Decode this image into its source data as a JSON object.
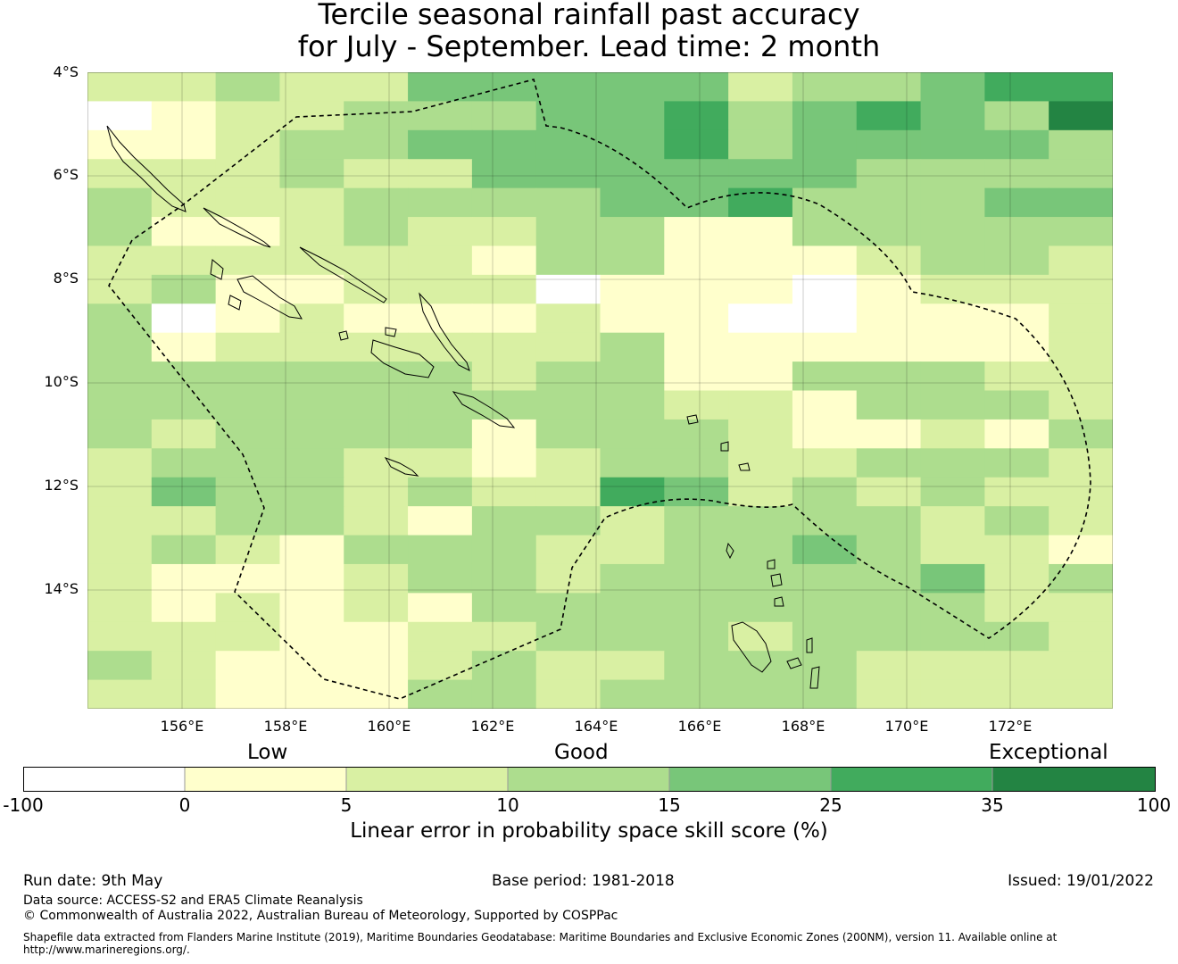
{
  "title": {
    "line1": "Tercile seasonal rainfall past accuracy",
    "line2": "for July - September. Lead time: 2 month"
  },
  "map": {
    "lat_labels": [
      "4°S",
      "6°S",
      "8°S",
      "10°S",
      "12°S",
      "14°S"
    ],
    "lon_labels": [
      "156°E",
      "158°E",
      "160°E",
      "162°E",
      "164°E",
      "166°E",
      "168°E",
      "170°E",
      "172°E"
    ],
    "skill_grid": [
      "2232244444233455",
      "0122333445345436",
      "1123344445344443",
      "2223224444443333",
      "3222333344533344",
      "3112322331133333",
      "2222221331112332",
      "2311222011101222",
      "3012111211001112",
      "3122222231111112",
      "3333332331133322",
      "3333333332213332",
      "3233331333211213",
      "2333221233223332",
      "2433232254232322",
      "2233213323333232",
      "2321333223343221",
      "2111233233333423",
      "2121213333333322",
      "2221122333233332",
      "3211123223332222",
      "2211133233332222"
    ],
    "colors": [
      "#ffffff",
      "#ffffcc",
      "#d9f0a3",
      "#addd8e",
      "#78c679",
      "#41ab5d",
      "#238443"
    ]
  },
  "legend": {
    "category_low": "Low",
    "category_good": "Good",
    "category_exceptional": "Exceptional",
    "ticks": [
      "-100",
      "0",
      "5",
      "10",
      "15",
      "25",
      "35",
      "100"
    ],
    "label": "Linear error in probability space skill score (%)"
  },
  "footer": {
    "run_date": "Run date: 9th May",
    "base_period": "Base period: 1981-2018",
    "issued": "Issued: 19/01/2022",
    "data_source": "Data source: ACCESS-S2 and ERA5 Climate Reanalysis",
    "copyright": "© Commonwealth of Australia 2022, Australian Bureau of Meteorology, Supported by COSPPac",
    "shapefile_line1": "Shapefile data extracted from Flanders Marine Institute (2019), Maritime Boundaries Geodatabase: Maritime Boundaries and Exclusive Economic Zones (200NM), version 11. Available online at",
    "shapefile_line2": "http://www.marineregions.org/."
  }
}
